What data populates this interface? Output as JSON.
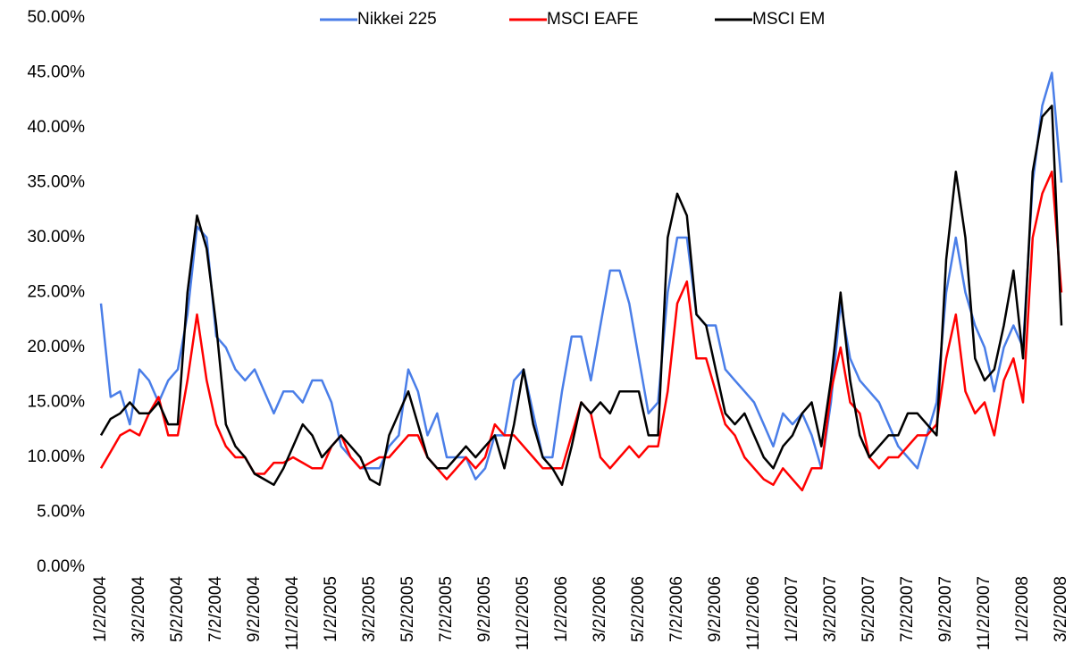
{
  "chart_data": {
    "type": "line",
    "categories": [
      "1/2/2004",
      null,
      null,
      null,
      "3/2/2004",
      null,
      null,
      null,
      "5/2/2004",
      null,
      null,
      null,
      "7/2/2004",
      null,
      null,
      null,
      "9/2/2004",
      null,
      null,
      null,
      "11/2/2004",
      null,
      null,
      null,
      "1/2/2005",
      null,
      null,
      null,
      "3/2/2005",
      null,
      null,
      null,
      "5/2/2005",
      null,
      null,
      null,
      "7/2/2005",
      null,
      null,
      null,
      "9/2/2005",
      null,
      null,
      null,
      "11/2/2005",
      null,
      null,
      null,
      "1/2/2006",
      null,
      null,
      null,
      "3/2/2006",
      null,
      null,
      null,
      "5/2/2006",
      null,
      null,
      null,
      "7/2/2006",
      null,
      null,
      null,
      "9/2/2006",
      null,
      null,
      null,
      "11/2/2006",
      null,
      null,
      null,
      "1/2/2007",
      null,
      null,
      null,
      "3/2/2007",
      null,
      null,
      null,
      "5/2/2007",
      null,
      null,
      null,
      "7/2/2007",
      null,
      null,
      null,
      "9/2/2007",
      null,
      null,
      null,
      "11/2/2007",
      null,
      null,
      null,
      "1/2/2008",
      null,
      null,
      null,
      "3/2/2008"
    ],
    "series": [
      {
        "name": "Nikkei 225",
        "color": "#4a7ee8",
        "values": [
          24,
          15.5,
          16,
          13,
          18,
          17,
          15,
          17,
          18,
          23,
          31,
          30,
          21,
          20,
          18,
          17,
          18,
          16,
          14,
          16,
          16,
          15,
          17,
          17,
          15,
          11,
          10,
          9,
          9,
          9,
          11,
          12,
          18,
          16,
          12,
          14,
          10,
          10,
          10,
          8,
          9,
          12,
          12,
          17,
          18,
          14,
          10,
          10,
          16,
          21,
          21,
          17,
          22,
          27,
          27,
          24,
          19,
          14,
          15,
          25,
          30,
          30,
          23,
          22,
          22,
          18,
          17,
          16,
          15,
          13,
          11,
          14,
          13,
          14,
          12,
          9,
          15,
          24,
          19,
          17,
          16,
          15,
          13,
          11,
          10,
          9,
          12,
          15,
          25,
          30,
          25,
          22,
          20,
          16,
          20,
          22,
          20,
          35,
          42,
          45,
          35
        ]
      },
      {
        "name": "MSCI EAFE",
        "color": "#ff0000",
        "values": [
          9,
          10.5,
          12,
          12.5,
          12,
          14,
          15.5,
          12,
          12,
          17,
          23,
          17,
          13,
          11,
          10,
          10,
          8.5,
          8.5,
          9.5,
          9.5,
          10,
          9.5,
          9,
          9,
          11,
          12,
          10,
          9,
          9.5,
          10,
          10,
          11,
          12,
          12,
          10,
          9,
          8,
          9,
          10,
          9,
          10,
          13,
          12,
          12,
          11,
          10,
          9,
          9,
          9,
          12,
          15,
          14,
          10,
          9,
          10,
          11,
          10,
          11,
          11,
          16,
          24,
          26,
          19,
          19,
          16,
          13,
          12,
          10,
          9,
          8,
          7.5,
          9,
          8,
          7,
          9,
          9,
          16,
          20,
          15,
          14,
          10,
          9,
          10,
          10,
          11,
          12,
          12,
          13,
          19,
          23,
          16,
          14,
          15,
          12,
          17,
          19,
          15,
          30,
          34,
          36,
          25
        ]
      },
      {
        "name": "MSCI EM",
        "color": "#000000",
        "values": [
          12,
          13.5,
          14,
          15,
          14,
          14,
          15,
          13,
          13,
          25,
          32,
          29,
          22,
          13,
          11,
          10,
          8.5,
          8,
          7.5,
          9,
          11,
          13,
          12,
          10,
          11,
          12,
          11,
          10,
          8,
          7.5,
          12,
          14,
          16,
          13,
          10,
          9,
          9,
          10,
          11,
          10,
          11,
          12,
          9,
          13,
          18,
          13,
          10,
          9,
          7.5,
          11,
          15,
          14,
          15,
          14,
          16,
          16,
          16,
          12,
          12,
          30,
          34,
          32,
          23,
          22,
          18,
          14,
          13,
          14,
          12,
          10,
          9,
          11,
          12,
          14,
          15,
          11,
          17,
          25,
          17,
          12,
          10,
          11,
          12,
          12,
          14,
          14,
          13,
          12,
          28,
          36,
          30,
          19,
          17,
          18,
          22,
          27,
          19,
          36,
          41,
          42,
          22
        ]
      }
    ],
    "ylim": [
      0,
      50
    ],
    "yticks": [
      {
        "value": 0,
        "label": "0.00%"
      },
      {
        "value": 5,
        "label": "5.00%"
      },
      {
        "value": 10,
        "label": "10.00%"
      },
      {
        "value": 15,
        "label": "15.00%"
      },
      {
        "value": 20,
        "label": "20.00%"
      },
      {
        "value": 25,
        "label": "25.00%"
      },
      {
        "value": 30,
        "label": "30.00%"
      },
      {
        "value": 35,
        "label": "35.00%"
      },
      {
        "value": 40,
        "label": "40.00%"
      },
      {
        "value": 45,
        "label": "45.00%"
      },
      {
        "value": 50,
        "label": "50.00%"
      }
    ],
    "legend": "top",
    "grid": false
  }
}
